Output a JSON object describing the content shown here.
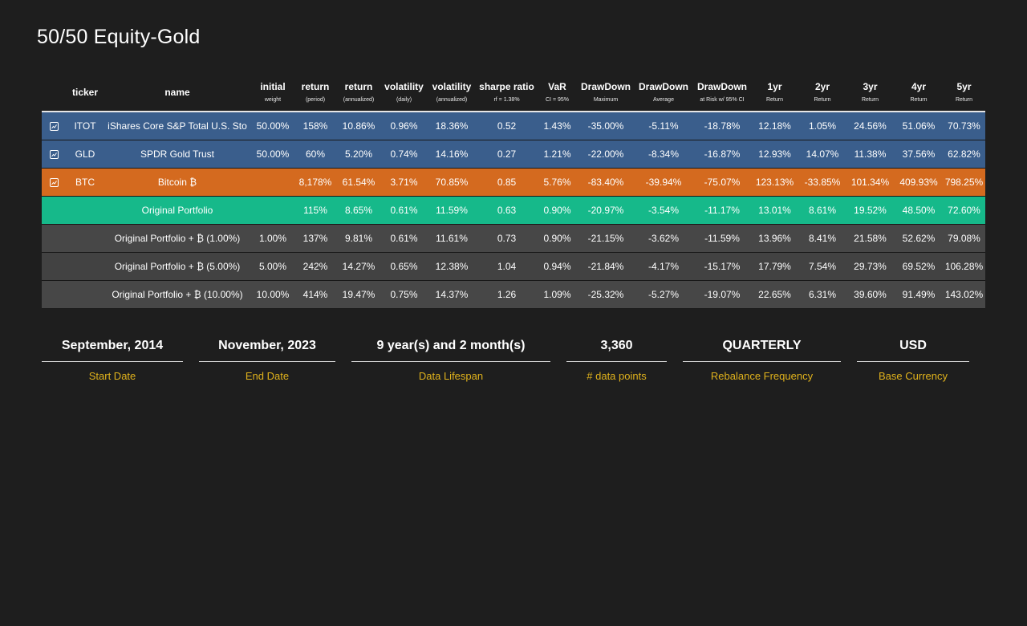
{
  "title": "50/50 Equity-Gold",
  "columns": [
    {
      "top": "",
      "sub": ""
    },
    {
      "top": "ticker",
      "sub": ""
    },
    {
      "top": "name",
      "sub": ""
    },
    {
      "top": "initial",
      "sub": "weight"
    },
    {
      "top": "return",
      "sub": "(period)"
    },
    {
      "top": "return",
      "sub": "(annualized)"
    },
    {
      "top": "volatility",
      "sub": "(daily)"
    },
    {
      "top": "volatility",
      "sub": "(annualized)"
    },
    {
      "top": "sharpe ratio",
      "sub": "rf = 1.38%"
    },
    {
      "top": "VaR",
      "sub": "CI = 95%"
    },
    {
      "top": "DrawDown",
      "sub": "Maximum"
    },
    {
      "top": "DrawDown",
      "sub": "Average"
    },
    {
      "top": "DrawDown",
      "sub": "at Risk w/ 95% CI"
    },
    {
      "top": "1yr",
      "sub": "Return"
    },
    {
      "top": "2yr",
      "sub": "Return"
    },
    {
      "top": "3yr",
      "sub": "Return"
    },
    {
      "top": "4yr",
      "sub": "Return"
    },
    {
      "top": "5yr",
      "sub": "Return"
    }
  ],
  "rows": [
    {
      "icon": "line-chart-icon",
      "ticker": "ITOT",
      "name": "iShares Core S&P Total U.S. Sto",
      "weight": "50.00%",
      "ret_period": "158%",
      "ret_ann": "10.86%",
      "vol_daily": "0.96%",
      "vol_ann": "18.36%",
      "sharpe": "0.52",
      "var": "1.43%",
      "dd_max": "-35.00%",
      "dd_avg": "-5.11%",
      "dd_risk": "-18.78%",
      "r1": "12.18%",
      "r2": "1.05%",
      "r3": "24.56%",
      "r4": "51.06%",
      "r5": "70.73%"
    },
    {
      "icon": "line-chart-icon",
      "ticker": "GLD",
      "name": "SPDR Gold Trust",
      "weight": "50.00%",
      "ret_period": "60%",
      "ret_ann": "5.20%",
      "vol_daily": "0.74%",
      "vol_ann": "14.16%",
      "sharpe": "0.27",
      "var": "1.21%",
      "dd_max": "-22.00%",
      "dd_avg": "-8.34%",
      "dd_risk": "-16.87%",
      "r1": "12.93%",
      "r2": "14.07%",
      "r3": "11.38%",
      "r4": "37.56%",
      "r5": "62.82%"
    },
    {
      "icon": "line-chart-icon",
      "ticker": "BTC",
      "name": "Bitcoin ₿",
      "weight": "",
      "ret_period": "8,178%",
      "ret_ann": "61.54%",
      "vol_daily": "3.71%",
      "vol_ann": "70.85%",
      "sharpe": "0.85",
      "var": "5.76%",
      "dd_max": "-83.40%",
      "dd_avg": "-39.94%",
      "dd_risk": "-75.07%",
      "r1": "123.13%",
      "r2": "-33.85%",
      "r3": "101.34%",
      "r4": "409.93%",
      "r5": "798.25%"
    },
    {
      "icon": "",
      "ticker": "",
      "name": "Original Portfolio",
      "weight": "",
      "ret_period": "115%",
      "ret_ann": "8.65%",
      "vol_daily": "0.61%",
      "vol_ann": "11.59%",
      "sharpe": "0.63",
      "var": "0.90%",
      "dd_max": "-20.97%",
      "dd_avg": "-3.54%",
      "dd_risk": "-11.17%",
      "r1": "13.01%",
      "r2": "8.61%",
      "r3": "19.52%",
      "r4": "48.50%",
      "r5": "72.60%"
    },
    {
      "icon": "",
      "ticker": "",
      "name": "Original Portfolio + ₿ (1.00%)",
      "weight": "1.00%",
      "ret_period": "137%",
      "ret_ann": "9.81%",
      "vol_daily": "0.61%",
      "vol_ann": "11.61%",
      "sharpe": "0.73",
      "var": "0.90%",
      "dd_max": "-21.15%",
      "dd_avg": "-3.62%",
      "dd_risk": "-11.59%",
      "r1": "13.96%",
      "r2": "8.41%",
      "r3": "21.58%",
      "r4": "52.62%",
      "r5": "79.08%"
    },
    {
      "icon": "",
      "ticker": "",
      "name": "Original Portfolio + ₿ (5.00%)",
      "weight": "5.00%",
      "ret_period": "242%",
      "ret_ann": "14.27%",
      "vol_daily": "0.65%",
      "vol_ann": "12.38%",
      "sharpe": "1.04",
      "var": "0.94%",
      "dd_max": "-21.84%",
      "dd_avg": "-4.17%",
      "dd_risk": "-15.17%",
      "r1": "17.79%",
      "r2": "7.54%",
      "r3": "29.73%",
      "r4": "69.52%",
      "r5": "106.28%"
    },
    {
      "icon": "",
      "ticker": "",
      "name": "Original Portfolio + ₿ (10.00%)",
      "weight": "10.00%",
      "ret_period": "414%",
      "ret_ann": "19.47%",
      "vol_daily": "0.75%",
      "vol_ann": "14.37%",
      "sharpe": "1.26",
      "var": "1.09%",
      "dd_max": "-25.32%",
      "dd_avg": "-5.27%",
      "dd_risk": "-19.07%",
      "r1": "22.65%",
      "r2": "6.31%",
      "r3": "39.60%",
      "r4": "91.49%",
      "r5": "143.02%"
    }
  ],
  "info": {
    "start": {
      "value": "September, 2014",
      "label": "Start Date"
    },
    "end": {
      "value": "November, 2023",
      "label": "End Date"
    },
    "lifespan": {
      "value": "9 year(s) and 2 month(s)",
      "label": "Data Lifespan"
    },
    "points": {
      "value": "3,360",
      "label": "# data points"
    },
    "rebalance": {
      "value": "QUARTERLY",
      "label": "Rebalance Frequency"
    },
    "currency": {
      "value": "USD",
      "label": "Base Currency"
    }
  },
  "colors": {
    "asset_row": "#3a5e8c",
    "btc_row": "#d46a1f",
    "portfolio_row": "#16b98a",
    "variant_row": "#474747",
    "label_accent": "#e0b21c"
  }
}
